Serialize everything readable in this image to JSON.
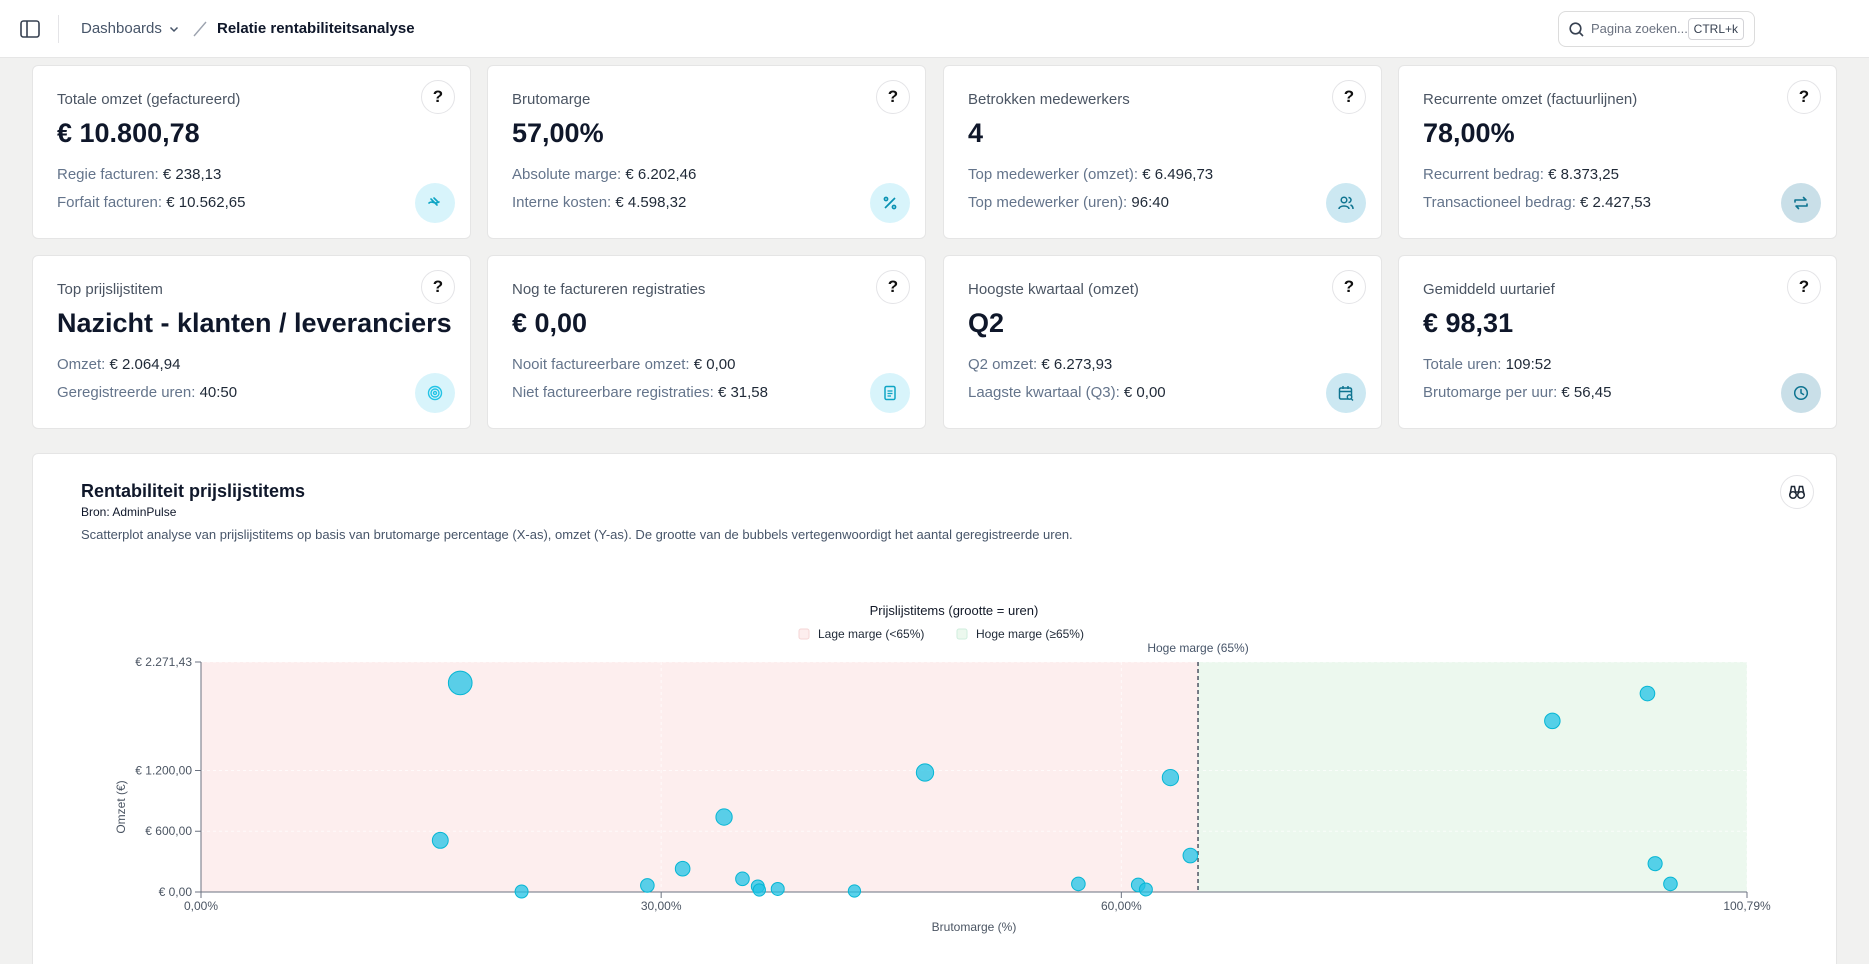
{
  "header": {
    "breadcrumb_dashboards": "Dashboards",
    "breadcrumb_current": "Relatie rentabiliteitsanalyse",
    "search_placeholder": "Pagina zoeken...",
    "search_shortcut": "CTRL+k"
  },
  "cards": [
    {
      "title": "Totale omzet (gefactureerd)",
      "value": "€ 10.800,78",
      "line1_label": "Regie facturen:",
      "line1_value": "€ 238,13",
      "line2_label": "Forfait facturen:",
      "line2_value": "€ 10.562,65",
      "help": "?",
      "icon": "hand-coins-icon"
    },
    {
      "title": "Brutomarge",
      "value": "57,00%",
      "line1_label": "Absolute marge:",
      "line1_value": "€ 6.202,46",
      "line2_label": "Interne kosten:",
      "line2_value": "€ 4.598,32",
      "help": "?",
      "icon": "percent-icon"
    },
    {
      "title": "Betrokken medewerkers",
      "value": "4",
      "line1_label": "Top medewerker (omzet):",
      "line1_value": "€ 6.496,73",
      "line2_label": "Top medewerker (uren):",
      "line2_value": "96:40",
      "help": "?",
      "icon": "users-icon"
    },
    {
      "title": "Recurrente omzet (factuurlijnen)",
      "value": "78,00%",
      "line1_label": "Recurrent bedrag:",
      "line1_value": "€ 8.373,25",
      "line2_label": "Transactioneel bedrag:",
      "line2_value": "€ 2.427,53",
      "help": "?",
      "icon": "repeat-icon"
    },
    {
      "title": "Top prijslijstitem",
      "value": "Nazicht - klanten / leveranciers",
      "line1_label": "Omzet:",
      "line1_value": "€ 2.064,94",
      "line2_label": "Geregistreerde uren:",
      "line2_value": "40:50",
      "help": "?",
      "icon": "target-icon"
    },
    {
      "title": "Nog te factureren registraties",
      "value": "€ 0,00",
      "line1_label": "Nooit factureerbare omzet:",
      "line1_value": "€ 0,00",
      "line2_label": "Niet factureerbare registraties:",
      "line2_value": "€ 31,58",
      "help": "?",
      "icon": "document-icon"
    },
    {
      "title": "Hoogste kwartaal (omzet)",
      "value": "Q2",
      "line1_label": "Q2 omzet:",
      "line1_value": "€ 6.273,93",
      "line2_label": "Laagste kwartaal (Q3):",
      "line2_value": "€ 0,00",
      "help": "?",
      "icon": "calendar-search-icon"
    },
    {
      "title": "Gemiddeld uurtarief",
      "value": "€ 98,31",
      "line1_label": "Totale uren:",
      "line1_value": "109:52",
      "line2_label": "Brutomarge per uur:",
      "line2_value": "€ 56,45",
      "help": "?",
      "icon": "clock-icon"
    }
  ],
  "colors": {
    "accent": "#22c3e6",
    "low_margin_zone": "#fdeeee",
    "high_margin_zone": "#ecf8ee",
    "icon_bg_light": "#d8f4fb",
    "icon_bg_mid": "#cce8f2",
    "icon_bg_dark": "#c9dfe8"
  },
  "chart_section": {
    "title": "Rentabiliteit prijslijstitems",
    "source": "Bron: AdminPulse",
    "description": "Scatterplot analyse van prijslijstitems op basis van brutomarge percentage (X-as), omzet (Y-as). De grootte van de bubbels vertegenwoordigt het aantal geregistreerde uren."
  },
  "chart_data": {
    "type": "scatter",
    "title": "Prijslijstitems (grootte = uren)",
    "xlabel": "Brutomarge (%)",
    "ylabel": "Omzet (€)",
    "xlim": [
      0,
      100.79
    ],
    "ylim": [
      0,
      2271.43
    ],
    "xticks": [
      0,
      30,
      60,
      100.79
    ],
    "xtick_labels": [
      "0,00%",
      "30,00%",
      "60,00%",
      "100,79%"
    ],
    "yticks": [
      0,
      600,
      1200,
      2271.43
    ],
    "ytick_labels": [
      "€ 0,00",
      "€ 600,00",
      "€ 1.200,00",
      "€ 2.271,43"
    ],
    "legend_position": "top-center",
    "legend": [
      {
        "label": "Lage marge (<65%)",
        "color": "#fdeeee"
      },
      {
        "label": "Hoge marge (≥65%)",
        "color": "#ecf8ee"
      }
    ],
    "threshold": {
      "x": 65,
      "label": "Hoge marge (65%)"
    },
    "points": [
      {
        "x": 16.9,
        "y": 2064.94,
        "hours": 40.8
      },
      {
        "x": 15.6,
        "y": 510,
        "hours": 9
      },
      {
        "x": 20.9,
        "y": 5,
        "hours": 3
      },
      {
        "x": 29.1,
        "y": 65,
        "hours": 4
      },
      {
        "x": 31.4,
        "y": 230,
        "hours": 6
      },
      {
        "x": 34.1,
        "y": 740,
        "hours": 10
      },
      {
        "x": 35.3,
        "y": 130,
        "hours": 4
      },
      {
        "x": 36.3,
        "y": 55,
        "hours": 3
      },
      {
        "x": 36.4,
        "y": 20,
        "hours": 2
      },
      {
        "x": 37.6,
        "y": 30,
        "hours": 3
      },
      {
        "x": 42.6,
        "y": 10,
        "hours": 2
      },
      {
        "x": 47.2,
        "y": 1180,
        "hours": 13
      },
      {
        "x": 57.2,
        "y": 80,
        "hours": 4
      },
      {
        "x": 61.1,
        "y": 70,
        "hours": 4
      },
      {
        "x": 61.6,
        "y": 25,
        "hours": 3
      },
      {
        "x": 63.2,
        "y": 1130,
        "hours": 10
      },
      {
        "x": 64.5,
        "y": 360,
        "hours": 6
      },
      {
        "x": 88.1,
        "y": 1690,
        "hours": 8
      },
      {
        "x": 94.3,
        "y": 1960,
        "hours": 6
      },
      {
        "x": 94.8,
        "y": 280,
        "hours": 5
      },
      {
        "x": 95.8,
        "y": 80,
        "hours": 4
      }
    ]
  }
}
